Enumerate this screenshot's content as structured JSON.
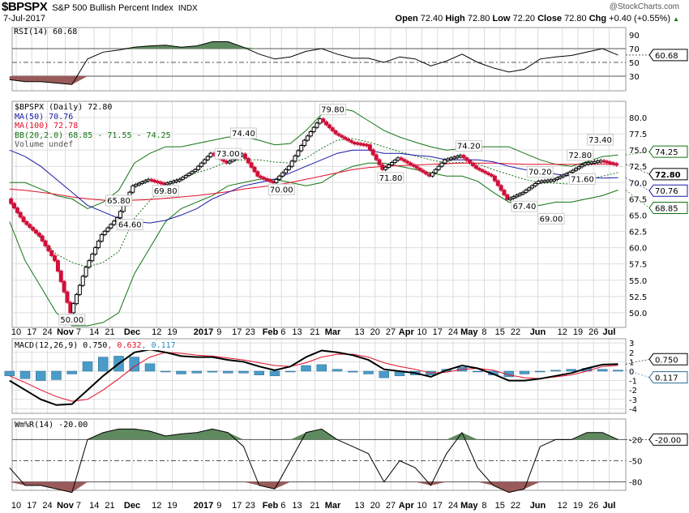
{
  "header": {
    "symbol": "$BPSPX",
    "name": "S&P 500 Bullish Percent Index",
    "exchange": "INDX",
    "date": "7-Jul-2017",
    "copyright": "@StockCharts.com",
    "open_label": "Open",
    "open": "72.40",
    "high_label": "High",
    "high": "72.80",
    "low_label": "Low",
    "low": "72.20",
    "close_label": "Close",
    "close": "72.80",
    "chg_label": "Chg",
    "chg": "+0.40 (+0.55%)",
    "up_arrow": "▲"
  },
  "colors": {
    "ma50": "#1a1aa8",
    "ma100": "#e0102a",
    "bb": "#137313",
    "down": "#d0103a",
    "macd_hist": "#4a9cc8",
    "fill_green": "#5f8a5f",
    "fill_red": "#9a5a5a"
  },
  "legends": {
    "rsi": "RSI(14) 60.68",
    "price": "$BPSPX (Daily) 72.80",
    "ma50": "MA(50) 70.76",
    "ma100": "MA(100) 72.78",
    "bb": "BB(20,2.0) 68.85 - 71.55 - 74.25",
    "volume": "Volume undef",
    "macd_a": "MACD(12,26,9) 0.750",
    "macd_b": ", 0.632",
    "macd_c": ", 0.117",
    "wr": "Wm%R(14) -20.00"
  },
  "chart_data": {
    "type": "line",
    "dates": [
      "2016-10-07",
      "2016-10-14",
      "2016-10-21",
      "2016-10-28",
      "2016-11-04",
      "2016-11-11",
      "2016-11-18",
      "2016-11-25",
      "2016-12-02",
      "2016-12-09",
      "2016-12-16",
      "2016-12-23",
      "2016-12-30",
      "2017-01-06",
      "2017-01-13",
      "2017-01-20",
      "2017-01-27",
      "2017-02-03",
      "2017-02-10",
      "2017-02-17",
      "2017-02-24",
      "2017-03-03",
      "2017-03-10",
      "2017-03-17",
      "2017-03-24",
      "2017-03-31",
      "2017-04-07",
      "2017-04-14",
      "2017-04-21",
      "2017-04-28",
      "2017-05-05",
      "2017-05-12",
      "2017-05-19",
      "2017-05-26",
      "2017-06-02",
      "2017-06-09",
      "2017-06-16",
      "2017-06-23",
      "2017-06-30",
      "2017-07-07"
    ],
    "price": [
      67.5,
      64,
      61.8,
      58,
      50.0,
      57,
      62,
      64.6,
      69.5,
      70.5,
      69.8,
      70.5,
      72,
      74.5,
      73,
      74.4,
      71,
      70,
      72.5,
      76.5,
      79.8,
      77.5,
      76.2,
      75.8,
      72,
      73.8,
      72.5,
      71,
      73.5,
      74.2,
      72.2,
      71,
      67.4,
      68.5,
      70.2,
      70.5,
      71.6,
      73.0,
      73.4,
      72.8
    ],
    "ma50": [
      75,
      74,
      72.5,
      70.5,
      68.5,
      66.5,
      65.5,
      64.5,
      64,
      63.8,
      64.2,
      65,
      66,
      67.5,
      68.5,
      69.5,
      70,
      70.5,
      71.5,
      72.5,
      73.5,
      74.5,
      75,
      75,
      74.5,
      74.5,
      74.2,
      74,
      73.5,
      73.5,
      73.5,
      73.2,
      72.5,
      72,
      71.8,
      71.3,
      71,
      70.8,
      70.7,
      70.76
    ],
    "ma100": [
      69,
      68.8,
      68.5,
      68.2,
      67.8,
      67.5,
      67.3,
      67.2,
      67.3,
      67.4,
      67.6,
      67.8,
      68,
      68.3,
      68.6,
      69,
      69.3,
      69.6,
      70,
      70.5,
      71,
      71.5,
      72,
      72.3,
      72.5,
      72.6,
      72.7,
      72.8,
      72.9,
      73,
      73,
      73,
      72.9,
      72.8,
      72.8,
      72.8,
      72.8,
      72.8,
      72.8,
      72.78
    ],
    "bb_upper": [
      70,
      70,
      69,
      68,
      67.5,
      66,
      67,
      68.8,
      73,
      74.5,
      75.5,
      75.5,
      76,
      76.5,
      77,
      77,
      76.5,
      75.8,
      76,
      78,
      80.5,
      81.5,
      81,
      79.5,
      78,
      77,
      76.2,
      75.5,
      75,
      75.2,
      75.5,
      75.5,
      75.5,
      74.5,
      73.5,
      72.8,
      72.5,
      73.2,
      74,
      74.25
    ],
    "bb_lower": [
      64,
      58,
      54,
      50,
      48,
      48,
      48.5,
      50,
      56,
      60,
      64,
      66,
      67,
      68,
      69.5,
      70,
      70.5,
      70.5,
      70,
      69.5,
      70,
      71.5,
      72.5,
      73,
      73,
      72.5,
      72,
      71.5,
      71,
      71,
      70.2,
      68.5,
      67,
      66.5,
      66.5,
      67,
      67,
      67.5,
      68,
      68.85
    ],
    "rsi": [
      25,
      22,
      22,
      20,
      18,
      55,
      65,
      68,
      72,
      74,
      75,
      72,
      74,
      80,
      80,
      72,
      62,
      55,
      58,
      66,
      70,
      62,
      56,
      56,
      50,
      58,
      55,
      45,
      52,
      62,
      50,
      42,
      36,
      40,
      55,
      58,
      60,
      65,
      70,
      60.68
    ],
    "macd": [
      -1,
      -2,
      -3,
      -3.6,
      -3.5,
      -2,
      -0.5,
      0.8,
      2,
      2.3,
      2,
      1.6,
      1.5,
      1.5,
      1.2,
      1.0,
      0.5,
      0.1,
      0.5,
      1.5,
      2.2,
      2,
      1.7,
      1.2,
      0.2,
      0,
      -0.2,
      -0.6,
      0.1,
      0.6,
      0.3,
      -0.3,
      -1,
      -1,
      -0.8,
      -0.5,
      -0.2,
      0.3,
      0.7,
      0.75
    ],
    "signal": [
      -0.5,
      -1.2,
      -2,
      -2.7,
      -3.2,
      -3,
      -2,
      -0.8,
      0.5,
      1.5,
      2,
      1.9,
      1.7,
      1.6,
      1.4,
      1.2,
      0.9,
      0.6,
      0.5,
      0.9,
      1.5,
      1.8,
      1.8,
      1.5,
      0.9,
      0.5,
      0.2,
      -0.2,
      -0.1,
      0.2,
      0.3,
      0.1,
      -0.4,
      -0.7,
      -0.8,
      -0.6,
      -0.4,
      0,
      0.5,
      0.632
    ],
    "williams_r": [
      -60,
      -85,
      -85,
      -90,
      -95,
      -20,
      -10,
      -5,
      -5,
      -8,
      -15,
      -12,
      -10,
      -5,
      -10,
      -30,
      -85,
      -90,
      -50,
      -10,
      -5,
      -20,
      -30,
      -40,
      -80,
      -50,
      -60,
      -85,
      -40,
      -10,
      -60,
      -85,
      -95,
      -90,
      -30,
      -20,
      -20,
      -10,
      -10,
      -20
    ],
    "annotations": [
      {
        "date": "2016-11-04",
        "value": "50.00"
      },
      {
        "date": "2016-11-25",
        "value": "65.80"
      },
      {
        "date": "2016-11-30",
        "value": "64.60"
      },
      {
        "date": "2016-12-16",
        "value": "69.80"
      },
      {
        "date": "2017-01-13",
        "value": "73.00"
      },
      {
        "date": "2017-01-20",
        "value": "74.40"
      },
      {
        "date": "2017-02-06",
        "value": "70.00"
      },
      {
        "date": "2017-03-01",
        "value": "79.80"
      },
      {
        "date": "2017-03-27",
        "value": "71.80"
      },
      {
        "date": "2017-05-01",
        "value": "74.20"
      },
      {
        "date": "2017-05-26",
        "value": "67.40"
      },
      {
        "date": "2017-06-07",
        "value": "69.00"
      },
      {
        "date": "2017-06-02",
        "value": "70.20"
      },
      {
        "date": "2017-06-21",
        "value": "71.60"
      },
      {
        "date": "2017-06-20",
        "value": "72.80"
      },
      {
        "date": "2017-06-29",
        "value": "73.40"
      }
    ],
    "x_ticks": [
      [
        "2016-10-10",
        "10"
      ],
      [
        "2016-10-17",
        "17"
      ],
      [
        "2016-10-24",
        "24"
      ],
      [
        "2016-11-01",
        "Nov"
      ],
      [
        "2016-11-07",
        "7"
      ],
      [
        "2016-11-14",
        "14"
      ],
      [
        "2016-11-21",
        "21"
      ],
      [
        "2016-12-01",
        "Dec"
      ],
      [
        "2016-12-12",
        "12"
      ],
      [
        "2016-12-19",
        "19"
      ],
      [
        "2017-01-02",
        "2017"
      ],
      [
        "2017-01-09",
        "9"
      ],
      [
        "2017-01-17",
        "17"
      ],
      [
        "2017-01-23",
        "23"
      ],
      [
        "2017-02-01",
        "Feb"
      ],
      [
        "2017-02-06",
        "6"
      ],
      [
        "2017-02-13",
        "13"
      ],
      [
        "2017-02-21",
        "21"
      ],
      [
        "2017-03-01",
        "Mar"
      ],
      [
        "2017-03-13",
        "13"
      ],
      [
        "2017-03-20",
        "20"
      ],
      [
        "2017-03-27",
        "27"
      ],
      [
        "2017-04-03",
        "Apr"
      ],
      [
        "2017-04-10",
        "10"
      ],
      [
        "2017-04-17",
        "17"
      ],
      [
        "2017-04-24",
        "24"
      ],
      [
        "2017-05-01",
        "May"
      ],
      [
        "2017-05-08",
        "8"
      ],
      [
        "2017-05-15",
        "15"
      ],
      [
        "2017-05-22",
        "22"
      ],
      [
        "2017-06-01",
        "Jun"
      ],
      [
        "2017-06-12",
        "12"
      ],
      [
        "2017-06-19",
        "19"
      ],
      [
        "2017-06-26",
        "26"
      ],
      [
        "2017-07-03",
        "Jul"
      ]
    ],
    "rsi_ticks": [
      "90",
      "70",
      "50",
      "30"
    ],
    "price_ticks": [
      "80.0",
      "77.5",
      "75.0",
      "72.5",
      "70.0",
      "67.5",
      "65.0",
      "62.5",
      "60.0",
      "57.5",
      "55.0",
      "52.5",
      "50.0"
    ],
    "macd_ticks": [
      "3",
      "2",
      "1",
      "0",
      "-1",
      "-2",
      "-3",
      "-4"
    ],
    "wr_ticks": [
      "-20",
      "-50",
      "-80"
    ],
    "tags": {
      "rsi": "60.68",
      "bb_upper": "74.25",
      "close": "72.80",
      "ma50": "70.76",
      "bb_lower": "68.85",
      "macd": "0.750",
      "hist": "0.117",
      "wr": "-20.00"
    }
  }
}
